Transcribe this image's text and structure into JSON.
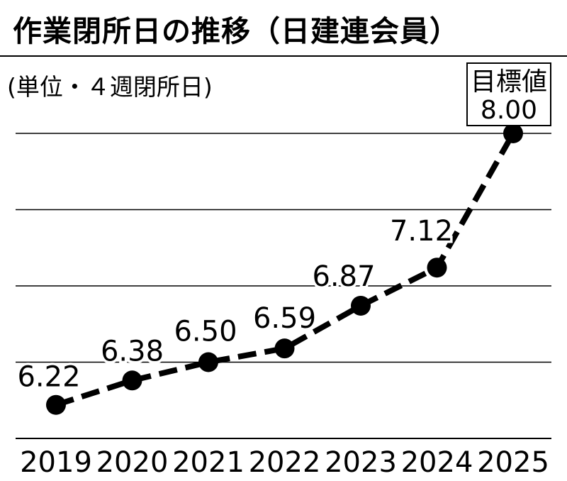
{
  "chart_data": {
    "type": "line",
    "title": "作業閉所日の推移（日建連会員）",
    "unit_label": "(単位・４週閉所日)",
    "categories": [
      "2019",
      "2020",
      "2021",
      "2022",
      "2023",
      "2024",
      "2025"
    ],
    "series": [
      {
        "values": [
          6.22,
          6.38,
          6.5,
          6.59,
          6.87,
          7.12,
          8.0
        ],
        "labels": [
          "6.22",
          "6.38",
          "6.50",
          "6.59",
          "6.87",
          "7.12",
          "8.00"
        ]
      }
    ],
    "target": {
      "label": "目標値",
      "value_label": "8.00",
      "category": "2025"
    },
    "ylim": [
      6.0,
      8.0
    ],
    "grid": true,
    "line_style": "dashed",
    "colors": {
      "line": "#000000",
      "grid": "#000000",
      "background": "#ffffff"
    }
  }
}
